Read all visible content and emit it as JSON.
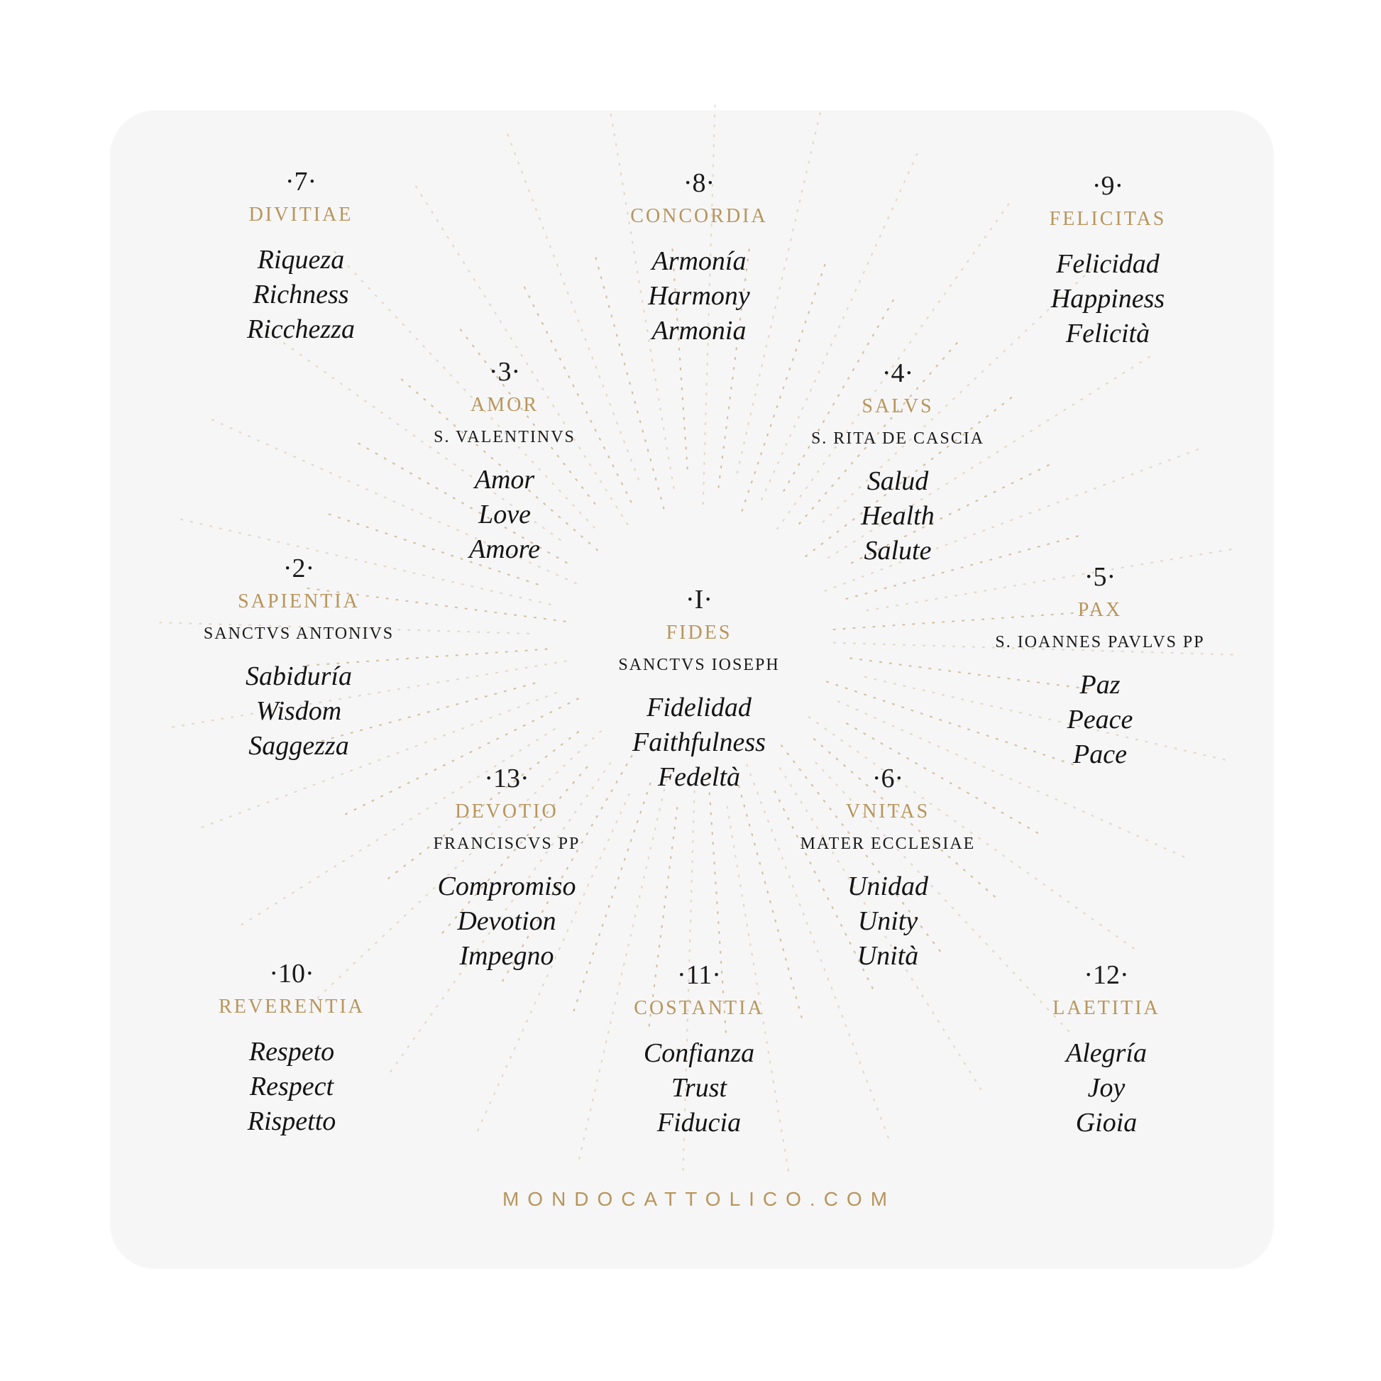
{
  "colors": {
    "gold": "#b8955a",
    "text": "#141414",
    "card": "#f6f6f7"
  },
  "blocks": [
    {
      "number": "·7·",
      "title": "DIVITIAE",
      "saint": "",
      "words": [
        "Riqueza",
        "Richness",
        "Ricchezza"
      ]
    },
    {
      "number": "·8·",
      "title": "CONCORDIA",
      "saint": "",
      "words": [
        "Armonía",
        "Harmony",
        "Armonia"
      ]
    },
    {
      "number": "·9·",
      "title": "FELICITAS",
      "saint": "",
      "words": [
        "Felicidad",
        "Happiness",
        "Felicità"
      ]
    },
    {
      "number": "·3·",
      "title": "AMOR",
      "saint": "S. VALENTINVS",
      "words": [
        "Amor",
        "Love",
        "Amore"
      ]
    },
    {
      "number": "·4·",
      "title": "SALVS",
      "saint": "S. RITA DE CASCIA",
      "words": [
        "Salud",
        "Health",
        "Salute"
      ]
    },
    {
      "number": "·2·",
      "title": "SAPIENTIA",
      "saint": "SANCTVS ANTONIVS",
      "words": [
        "Sabiduría",
        "Wisdom",
        "Saggezza"
      ]
    },
    {
      "number": "·I·",
      "title": "FIDES",
      "saint": "SANCTVS IOSEPH",
      "words": [
        "Fidelidad",
        "Faithfulness",
        "Fedeltà"
      ]
    },
    {
      "number": "·5·",
      "title": "PAX",
      "saint": "S. IOANNES PAVLVS PP",
      "words": [
        "Paz",
        "Peace",
        "Pace"
      ]
    },
    {
      "number": "·13·",
      "title": "DEVOTIO",
      "saint": "FRANCISCVS PP",
      "words": [
        "Compromiso",
        "Devotion",
        "Impegno"
      ]
    },
    {
      "number": "·6·",
      "title": "VNITAS",
      "saint": "MATER ECCLESIAE",
      "words": [
        "Unidad",
        "Unity",
        "Unità"
      ]
    },
    {
      "number": "·10·",
      "title": "REVERENTIA",
      "saint": "",
      "words": [
        "Respeto",
        "Respect",
        "Rispetto"
      ]
    },
    {
      "number": "·11·",
      "title": "COSTANTIA",
      "saint": "",
      "words": [
        "Confianza",
        "Trust",
        "Fiducia"
      ]
    },
    {
      "number": "·12·",
      "title": "LAETITIA",
      "saint": "",
      "words": [
        "Alegría",
        "Joy",
        "Gioia"
      ]
    }
  ],
  "footer": "MONDOCATTOLICO.COM"
}
